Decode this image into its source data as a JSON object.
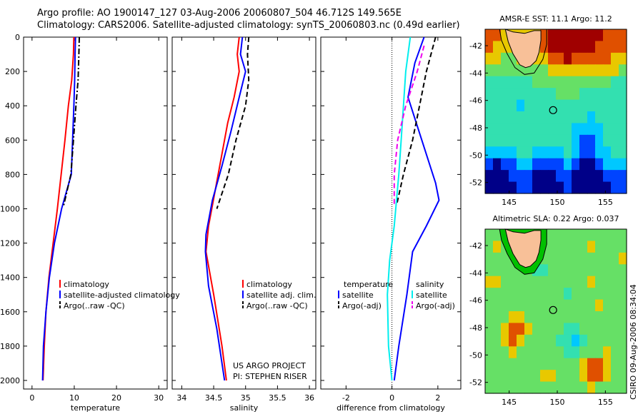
{
  "header": {
    "line1": "Argo profile: AO 1900147_127 03-Aug-2006 20060807_504 46.712S 149.565E",
    "line2": "Climatology: CARS2006. Satellite-adjusted climatology: synTS_20060803.nc (0.49d earlier)"
  },
  "credits": {
    "line1": "US ARGO PROJECT",
    "line2": "PI: STEPHEN RISER"
  },
  "side_label": "CSIRO 09-Aug-2006 08:34:04",
  "colors": {
    "climatology": "#ff0000",
    "satellite": "#0000ff",
    "argo": "#000000",
    "sat_salinity": "#00eeee",
    "argo_salinity_adj": "#ee00ee"
  },
  "chart_data": [
    {
      "type": "line",
      "xlabel": "temperature",
      "xlim": [
        -2,
        32
      ],
      "xticks": [
        0,
        10,
        20,
        30
      ],
      "ylim": [
        0,
        2050
      ],
      "yticks": [
        0,
        200,
        400,
        600,
        800,
        1000,
        1200,
        1400,
        1600,
        1800,
        2000
      ],
      "legend": {
        "placement": "lower-right",
        "entries": [
          "climatology",
          "satellite-adjusted climatology",
          "Argo(..raw -QC)"
        ]
      },
      "series": [
        {
          "name": "climatology",
          "color": "#ff0000",
          "style": "solid",
          "points": [
            [
              9.9,
              0
            ],
            [
              9.8,
              100
            ],
            [
              9.4,
              250
            ],
            [
              8.6,
              400
            ],
            [
              7.8,
              600
            ],
            [
              6.9,
              800
            ],
            [
              6.0,
              1000
            ],
            [
              5.0,
              1200
            ],
            [
              4.0,
              1400
            ],
            [
              3.3,
              1600
            ],
            [
              2.9,
              1800
            ],
            [
              2.6,
              2000
            ]
          ]
        },
        {
          "name": "satellite-adjusted climatology",
          "color": "#0000ff",
          "style": "solid",
          "points": [
            [
              10.3,
              0
            ],
            [
              10.2,
              100
            ],
            [
              10.1,
              250
            ],
            [
              9.9,
              400
            ],
            [
              9.6,
              600
            ],
            [
              9.3,
              800
            ],
            [
              7.0,
              1000
            ],
            [
              5.3,
              1200
            ],
            [
              4.1,
              1400
            ],
            [
              3.3,
              1600
            ],
            [
              2.7,
              1800
            ],
            [
              2.5,
              2000
            ]
          ]
        },
        {
          "name": "Argo(..raw -QC)",
          "color": "#000000",
          "style": "dashdot",
          "points": [
            [
              11.2,
              0
            ],
            [
              11.1,
              100
            ],
            [
              10.9,
              250
            ],
            [
              10.4,
              400
            ],
            [
              9.8,
              600
            ],
            [
              9.2,
              800
            ],
            [
              7.5,
              980
            ]
          ]
        }
      ]
    },
    {
      "type": "line",
      "xlabel": "salinity",
      "xlim": [
        33.85,
        36.1
      ],
      "xticks": [
        34,
        34.5,
        35,
        35.5,
        36
      ],
      "ylim": [
        0,
        2050
      ],
      "legend": {
        "placement": "lower-right",
        "entries": [
          "climatology",
          "satellite adj. clim.",
          "Argo(..raw -QC)"
        ]
      },
      "series": [
        {
          "name": "climatology",
          "color": "#ff0000",
          "style": "solid",
          "points": [
            [
              34.9,
              0
            ],
            [
              34.87,
              100
            ],
            [
              34.9,
              200
            ],
            [
              34.82,
              350
            ],
            [
              34.72,
              500
            ],
            [
              34.62,
              700
            ],
            [
              34.52,
              900
            ],
            [
              34.42,
              1100
            ],
            [
              34.38,
              1250
            ],
            [
              34.5,
              1500
            ],
            [
              34.63,
              1800
            ],
            [
              34.7,
              2000
            ]
          ]
        },
        {
          "name": "satellite adj. clim.",
          "color": "#0000ff",
          "style": "solid",
          "points": [
            [
              34.95,
              0
            ],
            [
              34.92,
              100
            ],
            [
              35.0,
              200
            ],
            [
              34.9,
              350
            ],
            [
              34.77,
              550
            ],
            [
              34.63,
              750
            ],
            [
              34.48,
              950
            ],
            [
              34.38,
              1150
            ],
            [
              34.37,
              1250
            ],
            [
              34.42,
              1450
            ],
            [
              34.55,
              1700
            ],
            [
              34.67,
              2000
            ]
          ]
        },
        {
          "name": "Argo(..raw -QC)",
          "color": "#000000",
          "style": "dashed",
          "points": [
            [
              35.05,
              0
            ],
            [
              35.03,
              100
            ],
            [
              35.05,
              250
            ],
            [
              35.0,
              400
            ],
            [
              34.85,
              600
            ],
            [
              34.73,
              800
            ],
            [
              34.55,
              1000
            ]
          ]
        }
      ]
    },
    {
      "type": "line",
      "xlabel": "difference from climatology",
      "xlim": [
        -3.1,
        3.0
      ],
      "xticks": [
        -2,
        0,
        2
      ],
      "ylim": [
        0,
        2050
      ],
      "legend": {
        "placement": "lower-right",
        "headers": [
          "temperature",
          "salinity"
        ],
        "entries": [
          "satellite",
          "Argo(-adj)",
          "satellite",
          "Argo(-adj)"
        ]
      },
      "series": [
        {
          "name": "satellite",
          "group": "temperature",
          "color": "#0000ff",
          "style": "solid",
          "points": [
            [
              1.4,
              0
            ],
            [
              1.0,
              150
            ],
            [
              0.7,
              350
            ],
            [
              1.3,
              600
            ],
            [
              1.9,
              850
            ],
            [
              2.05,
              950
            ],
            [
              1.5,
              1100
            ],
            [
              0.9,
              1250
            ],
            [
              0.65,
              1500
            ],
            [
              0.3,
              1800
            ],
            [
              0.1,
              2000
            ]
          ]
        },
        {
          "name": "Argo(-adj)",
          "group": "temperature",
          "color": "#000000",
          "style": "dashed",
          "points": [
            [
              1.9,
              0
            ],
            [
              1.5,
              200
            ],
            [
              1.2,
              400
            ],
            [
              0.9,
              600
            ],
            [
              0.5,
              800
            ],
            [
              0.2,
              980
            ]
          ]
        },
        {
          "name": "satellite",
          "group": "salinity",
          "color": "#00eeee",
          "style": "solid",
          "points": [
            [
              0.8,
              0
            ],
            [
              0.6,
              200
            ],
            [
              0.5,
              400
            ],
            [
              0.4,
              600
            ],
            [
              0.3,
              800
            ],
            [
              0.1,
              1100
            ],
            [
              -0.1,
              1300
            ],
            [
              -0.2,
              1500
            ],
            [
              -0.15,
              1800
            ],
            [
              0.0,
              2000
            ]
          ]
        },
        {
          "name": "Argo(-adj)",
          "group": "salinity",
          "color": "#ee00ee",
          "style": "dashed",
          "points": [
            [
              1.4,
              50
            ],
            [
              1.1,
              200
            ],
            [
              0.6,
              400
            ],
            [
              0.25,
              600
            ],
            [
              0.1,
              800
            ],
            [
              0.1,
              980
            ]
          ]
        }
      ]
    },
    {
      "type": "heatmap",
      "title": "AMSR-E SST: 11.1  Argo: 11.2",
      "xticks": [
        145,
        150,
        155
      ],
      "yticks": [
        -42,
        -44,
        -46,
        -48,
        -50,
        -52
      ],
      "xlim": [
        142.5,
        157.2
      ],
      "ylim": [
        -52.8,
        -40.8
      ],
      "marker": {
        "lon": 149.565,
        "lat": -46.712
      },
      "colorscale": [
        "#000088",
        "#0044ff",
        "#00c8ff",
        "#33e0b0",
        "#66e066",
        "#e8c800",
        "#e05000",
        "#a00000"
      ],
      "rows": [
        [
          6,
          6,
          5,
          5,
          5,
          5,
          5,
          6,
          7,
          7,
          7,
          7,
          7,
          7,
          7,
          6,
          6,
          6
        ],
        [
          6,
          5,
          5,
          5,
          5,
          5,
          5,
          6,
          7,
          7,
          7,
          7,
          7,
          7,
          6,
          6,
          6,
          6
        ],
        [
          5,
          5,
          4,
          4,
          5,
          5,
          5,
          5,
          6,
          6,
          7,
          6,
          6,
          6,
          6,
          6,
          5,
          5
        ],
        [
          4,
          4,
          4,
          4,
          4,
          4,
          4,
          4,
          5,
          5,
          5,
          5,
          5,
          5,
          5,
          5,
          5,
          4
        ],
        [
          3,
          3,
          3,
          3,
          3,
          3,
          4,
          4,
          4,
          4,
          4,
          4,
          4,
          4,
          4,
          4,
          3,
          3
        ],
        [
          3,
          3,
          3,
          3,
          3,
          3,
          3,
          3,
          3,
          4,
          4,
          4,
          3,
          3,
          3,
          3,
          3,
          3
        ],
        [
          3,
          3,
          3,
          3,
          2,
          3,
          3,
          3,
          3,
          3,
          3,
          3,
          3,
          3,
          3,
          3,
          3,
          3
        ],
        [
          3,
          3,
          3,
          3,
          3,
          3,
          3,
          3,
          3,
          3,
          3,
          3,
          3,
          2,
          3,
          3,
          3,
          3
        ],
        [
          3,
          3,
          3,
          3,
          3,
          3,
          3,
          3,
          3,
          3,
          3,
          2,
          2,
          2,
          2,
          3,
          3,
          3
        ],
        [
          3,
          3,
          3,
          3,
          3,
          3,
          3,
          3,
          3,
          3,
          3,
          2,
          1,
          1,
          2,
          3,
          3,
          3
        ],
        [
          2,
          2,
          2,
          2,
          3,
          3,
          2,
          2,
          2,
          2,
          3,
          2,
          1,
          1,
          2,
          2,
          3,
          3
        ],
        [
          1,
          0,
          1,
          1,
          2,
          2,
          1,
          1,
          1,
          1,
          2,
          1,
          0,
          0,
          1,
          2,
          2,
          2
        ],
        [
          0,
          0,
          0,
          1,
          1,
          1,
          0,
          0,
          0,
          1,
          1,
          0,
          0,
          0,
          0,
          1,
          1,
          1
        ],
        [
          0,
          0,
          0,
          0,
          1,
          1,
          0,
          0,
          0,
          0,
          1,
          0,
          0,
          0,
          0,
          0,
          1,
          1
        ]
      ]
    },
    {
      "type": "heatmap",
      "title": "Altimetric SLA: 0.22  Argo: 0.037",
      "xticks": [
        145,
        150,
        155
      ],
      "yticks": [
        -42,
        -44,
        -46,
        -48,
        -50,
        -52
      ],
      "xlim": [
        142.5,
        157.2
      ],
      "ylim": [
        -52.8,
        -40.8
      ],
      "marker": {
        "lon": 149.565,
        "lat": -46.712
      },
      "colorscale": [
        "#000088",
        "#0044ff",
        "#00c8ff",
        "#33e0b0",
        "#66e066",
        "#e8c800",
        "#e05000",
        "#a00000"
      ],
      "rows": [
        [
          4,
          4,
          4,
          4,
          4,
          4,
          4,
          4,
          4,
          4,
          4,
          4,
          4,
          4,
          4,
          4,
          4,
          4
        ],
        [
          4,
          5,
          4,
          4,
          4,
          4,
          4,
          4,
          4,
          4,
          4,
          4,
          4,
          5,
          4,
          4,
          4,
          4
        ],
        [
          4,
          4,
          4,
          4,
          4,
          4,
          4,
          4,
          4,
          4,
          4,
          4,
          4,
          4,
          4,
          4,
          4,
          5
        ],
        [
          4,
          4,
          4,
          4,
          4,
          4,
          3,
          3,
          4,
          4,
          4,
          4,
          4,
          4,
          4,
          4,
          4,
          4
        ],
        [
          5,
          5,
          4,
          4,
          4,
          4,
          4,
          4,
          4,
          4,
          4,
          4,
          4,
          5,
          4,
          4,
          4,
          4
        ],
        [
          4,
          4,
          4,
          4,
          4,
          4,
          4,
          4,
          4,
          4,
          3,
          4,
          4,
          4,
          4,
          4,
          4,
          4
        ],
        [
          4,
          4,
          4,
          4,
          4,
          4,
          4,
          4,
          4,
          4,
          4,
          4,
          4,
          4,
          5,
          4,
          4,
          4
        ],
        [
          4,
          4,
          4,
          5,
          5,
          4,
          4,
          4,
          4,
          4,
          4,
          4,
          4,
          4,
          4,
          4,
          4,
          4
        ],
        [
          4,
          4,
          5,
          6,
          6,
          5,
          4,
          4,
          4,
          4,
          3,
          3,
          4,
          4,
          4,
          4,
          4,
          4
        ],
        [
          4,
          4,
          5,
          6,
          5,
          4,
          4,
          4,
          4,
          3,
          3,
          2,
          3,
          4,
          4,
          4,
          4,
          4
        ],
        [
          4,
          4,
          4,
          5,
          4,
          4,
          4,
          4,
          4,
          4,
          3,
          3,
          4,
          4,
          4,
          5,
          4,
          4
        ],
        [
          4,
          4,
          4,
          4,
          4,
          4,
          4,
          4,
          4,
          4,
          4,
          4,
          5,
          6,
          6,
          5,
          4,
          4
        ],
        [
          4,
          4,
          4,
          4,
          4,
          4,
          4,
          5,
          5,
          4,
          4,
          4,
          5,
          6,
          6,
          5,
          4,
          4
        ],
        [
          4,
          4,
          4,
          4,
          4,
          4,
          4,
          4,
          4,
          4,
          4,
          4,
          4,
          5,
          4,
          4,
          4,
          4
        ]
      ]
    }
  ]
}
